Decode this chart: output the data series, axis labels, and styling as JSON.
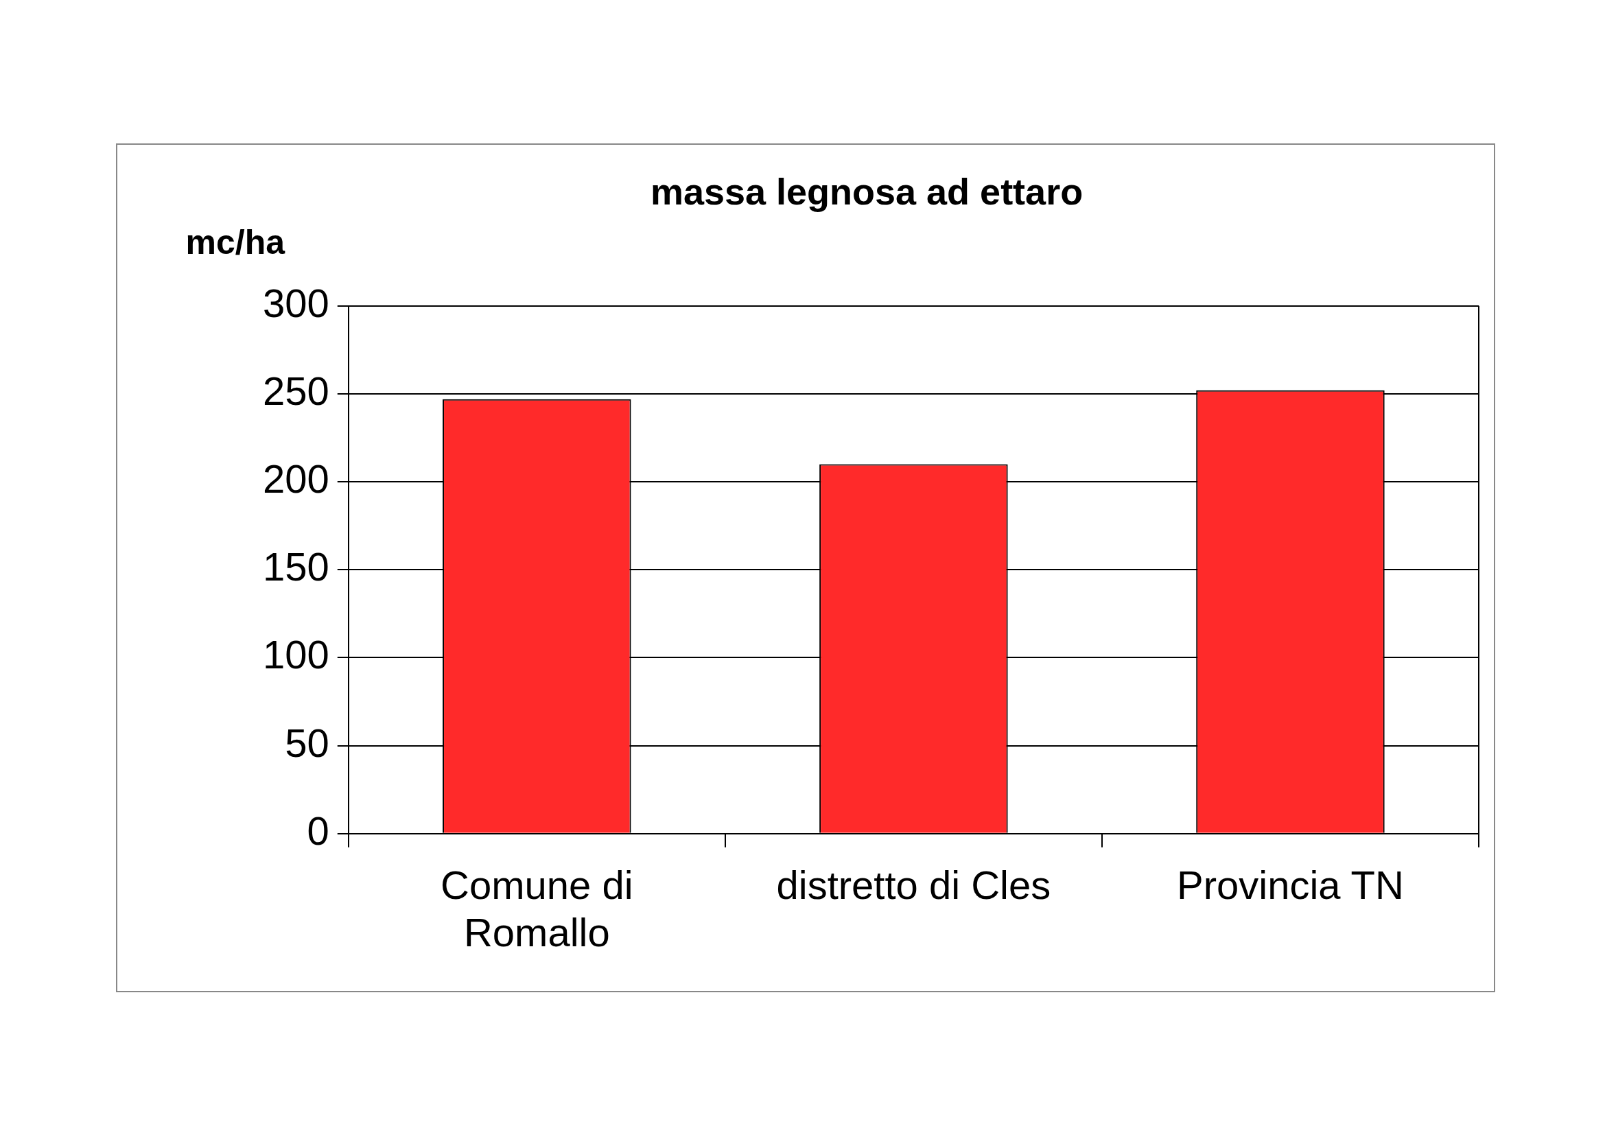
{
  "chart_data": {
    "type": "bar",
    "title": "massa legnosa ad ettaro",
    "ylabel": "mc/ha",
    "categories": [
      "Comune di Romallo",
      "distretto di Cles",
      "Provincia TN"
    ],
    "values": [
      247,
      210,
      252
    ],
    "color": "#ff2a2a",
    "ylim": [
      0,
      300
    ],
    "yticks": [
      0,
      50,
      100,
      150,
      200,
      250,
      300
    ],
    "grid": "y",
    "legend": false
  }
}
